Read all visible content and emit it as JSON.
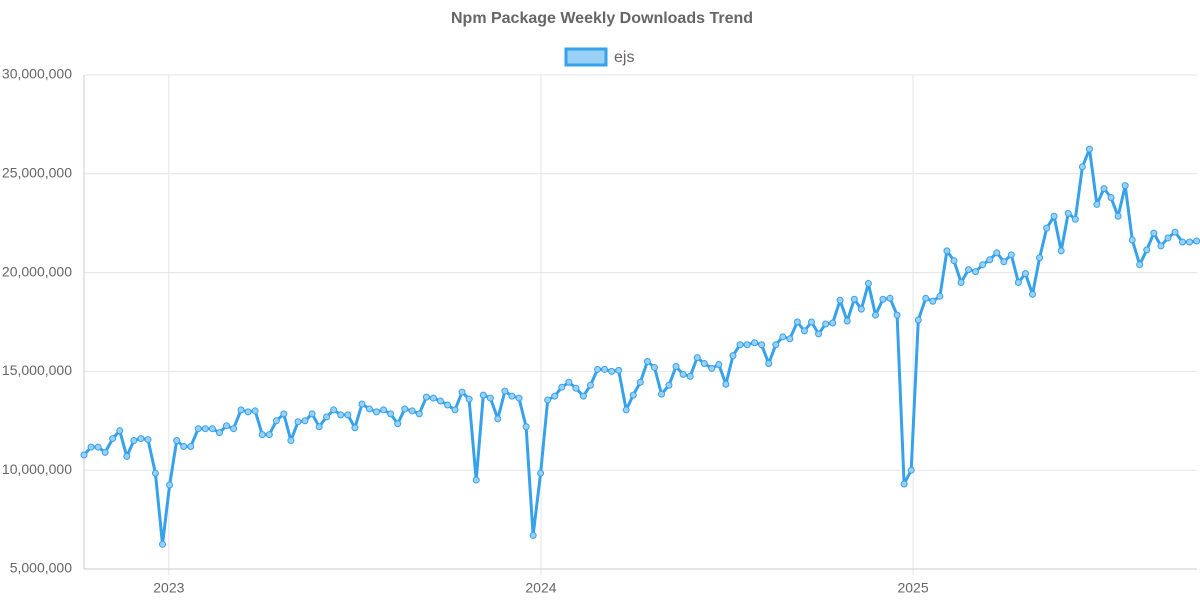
{
  "chart_data": {
    "type": "line",
    "title": "Npm Package Weekly Downloads Trend",
    "x": [
      2022.772,
      2022.791,
      2022.81,
      2022.829,
      2022.849,
      2022.868,
      2022.887,
      2022.906,
      2022.925,
      2022.944,
      2022.964,
      2022.983,
      2023.002,
      2023.021,
      2023.04,
      2023.059,
      2023.079,
      2023.098,
      2023.117,
      2023.136,
      2023.155,
      2023.174,
      2023.194,
      2023.213,
      2023.232,
      2023.251,
      2023.27,
      2023.289,
      2023.309,
      2023.328,
      2023.347,
      2023.366,
      2023.385,
      2023.404,
      2023.424,
      2023.443,
      2023.462,
      2023.481,
      2023.5,
      2023.519,
      2023.539,
      2023.558,
      2023.577,
      2023.596,
      2023.615,
      2023.634,
      2023.654,
      2023.673,
      2023.692,
      2023.711,
      2023.73,
      2023.749,
      2023.769,
      2023.788,
      2023.807,
      2023.826,
      2023.845,
      2023.864,
      2023.884,
      2023.903,
      2023.922,
      2023.941,
      2023.96,
      2023.979,
      2023.999,
      2024.018,
      2024.037,
      2024.056,
      2024.075,
      2024.094,
      2024.114,
      2024.133,
      2024.152,
      2024.171,
      2024.19,
      2024.209,
      2024.229,
      2024.248,
      2024.267,
      2024.286,
      2024.305,
      2024.324,
      2024.344,
      2024.363,
      2024.382,
      2024.401,
      2024.42,
      2024.439,
      2024.459,
      2024.478,
      2024.497,
      2024.516,
      2024.535,
      2024.554,
      2024.574,
      2024.593,
      2024.612,
      2024.631,
      2024.65,
      2024.669,
      2024.689,
      2024.708,
      2024.727,
      2024.746,
      2024.765,
      2024.784,
      2024.804,
      2024.823,
      2024.842,
      2024.861,
      2024.88,
      2024.899,
      2024.919,
      2024.938,
      2024.957,
      2024.976,
      2024.995,
      2025.014,
      2025.034,
      2025.053,
      2025.072,
      2025.091,
      2025.11,
      2025.129,
      2025.149,
      2025.168,
      2025.187,
      2025.206,
      2025.225,
      2025.244,
      2025.264,
      2025.283,
      2025.302,
      2025.321,
      2025.34,
      2025.359,
      2025.379,
      2025.398,
      2025.417,
      2025.436,
      2025.455,
      2025.474,
      2025.494,
      2025.513,
      2025.532,
      2025.551,
      2025.57,
      2025.589,
      2025.609,
      2025.628,
      2025.647,
      2025.666,
      2025.685,
      2025.704,
      2025.724,
      2025.743,
      2025.762
    ],
    "series": [
      {
        "name": "ejs",
        "color": "#36a2eb",
        "values": [
          10770000,
          11170000,
          11170000,
          10900000,
          11600000,
          12000000,
          10700000,
          11500000,
          11600000,
          11550000,
          9850000,
          6250000,
          9250000,
          11500000,
          11200000,
          11200000,
          12100000,
          12100000,
          12100000,
          11900000,
          12250000,
          12100000,
          13050000,
          12950000,
          13000000,
          11800000,
          11800000,
          12500000,
          12850000,
          11500000,
          12450000,
          12500000,
          12850000,
          12200000,
          12700000,
          13050000,
          12800000,
          12800000,
          12150000,
          13350000,
          13100000,
          12950000,
          13050000,
          12850000,
          12350000,
          13100000,
          13000000,
          12850000,
          13700000,
          13650000,
          13500000,
          13300000,
          13050000,
          13950000,
          13600000,
          9500000,
          13800000,
          13650000,
          12600000,
          14000000,
          13750000,
          13650000,
          12200000,
          6700000,
          9850000,
          13550000,
          13750000,
          14200000,
          14450000,
          14150000,
          13750000,
          14300000,
          15100000,
          15100000,
          15000000,
          15050000,
          13050000,
          13800000,
          14450000,
          15500000,
          15200000,
          13850000,
          14300000,
          15250000,
          14850000,
          14750000,
          15700000,
          15400000,
          15150000,
          15350000,
          14350000,
          15800000,
          16350000,
          16350000,
          16450000,
          16350000,
          15400000,
          16350000,
          16750000,
          16650000,
          17500000,
          17050000,
          17500000,
          16900000,
          17400000,
          17450000,
          18600000,
          17550000,
          18650000,
          18150000,
          19450000,
          17850000,
          18650000,
          18700000,
          17850000,
          9300000,
          10000000,
          17600000,
          18700000,
          18550000,
          18800000,
          21100000,
          20600000,
          19500000,
          20150000,
          20050000,
          20400000,
          20650000,
          21000000,
          20550000,
          20900000,
          19500000,
          19950000,
          18900000,
          20750000,
          22250000,
          22850000,
          21100000,
          23000000,
          22700000,
          25350000,
          26250000,
          23450000,
          24250000,
          23800000,
          22850000,
          24400000,
          21650000,
          20400000,
          21150000,
          22000000,
          21350000,
          21750000,
          22050000,
          21550000,
          21550000,
          21600000
        ]
      }
    ],
    "xlim": [
      2022.772,
      2025.763
    ],
    "xticks": [
      2023,
      2024,
      2025
    ],
    "ylim": [
      5000000,
      30000000
    ],
    "yticks": [
      {
        "value": 5000000,
        "label": "5,000,000"
      },
      {
        "value": 10000000,
        "label": "10,000,000"
      },
      {
        "value": 15000000,
        "label": "15,000,000"
      },
      {
        "value": 20000000,
        "label": "20,000,000"
      },
      {
        "value": 25000000,
        "label": "25,000,000"
      },
      {
        "value": 30000000,
        "label": "30,000,000"
      }
    ],
    "grid": true,
    "legend": "top"
  }
}
